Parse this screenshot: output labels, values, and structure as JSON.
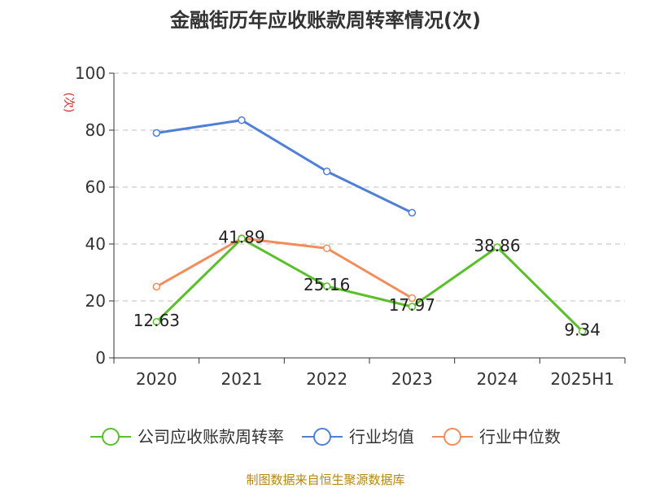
{
  "chart_data": {
    "type": "line",
    "title": "金融街历年应收账款周转率情况(次)",
    "ylabel": "(次)",
    "xlabel": "",
    "categories": [
      "2020",
      "2021",
      "2022",
      "2023",
      "2024",
      "2025H1"
    ],
    "ylim": [
      0,
      100
    ],
    "yticks": [
      0,
      20,
      40,
      60,
      80,
      100
    ],
    "grid": true,
    "legend_position": "bottom",
    "series": [
      {
        "name": "公司应收账款周转率",
        "color": "#5ac02a",
        "values": [
          12.63,
          41.89,
          25.16,
          17.97,
          38.86,
          9.34
        ],
        "labels": [
          "12.63",
          "41.89",
          "25.16",
          "17.97",
          "38.86",
          "9.34"
        ]
      },
      {
        "name": "行业均值",
        "color": "#4f7fd6",
        "values": [
          79,
          83.5,
          65.5,
          51,
          null,
          null
        ]
      },
      {
        "name": "行业中位数",
        "color": "#f28c5a",
        "values": [
          25,
          42,
          38.5,
          21,
          null,
          null
        ]
      }
    ]
  },
  "source": "制图数据来自恒生聚源数据库"
}
